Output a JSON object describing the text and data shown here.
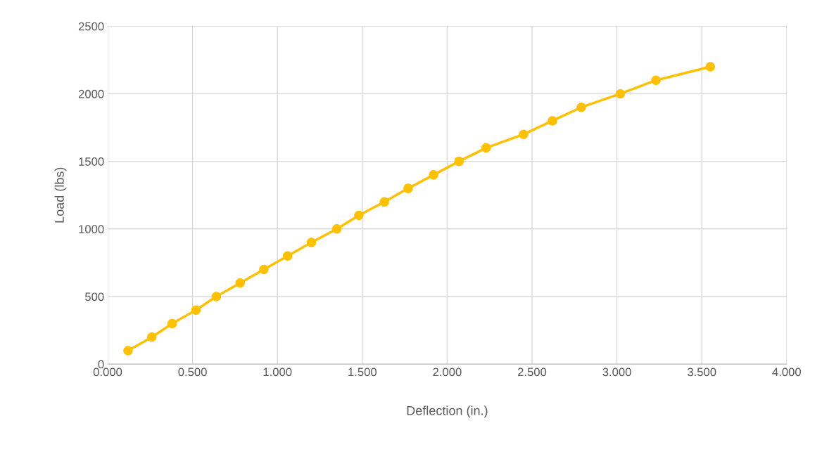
{
  "chart_data": {
    "type": "line",
    "xlabel": "Deflection (in.)",
    "ylabel": "Load (lbs)",
    "series": [
      {
        "color": "#ffc000",
        "x": [
          0.12,
          0.26,
          0.38,
          0.52,
          0.64,
          0.78,
          0.92,
          1.06,
          1.2,
          1.35,
          1.48,
          1.63,
          1.77,
          1.92,
          2.07,
          2.23,
          2.45,
          2.62,
          2.79,
          3.02,
          3.23,
          3.55
        ],
        "values": [
          100,
          200,
          300,
          400,
          500,
          600,
          700,
          800,
          900,
          1000,
          1100,
          1200,
          1300,
          1400,
          1500,
          1600,
          1700,
          1800,
          1900,
          2000,
          2100,
          2200
        ]
      }
    ],
    "marker": "circle",
    "line_style": "solid",
    "grid": true,
    "xlim": [
      0,
      4
    ],
    "xticks": [
      {
        "value": 0,
        "label": "0.000"
      },
      {
        "value": 0.5,
        "label": "0.500"
      },
      {
        "value": 1,
        "label": "1.000"
      },
      {
        "value": 1.5,
        "label": "1.500"
      },
      {
        "value": 2,
        "label": "2.000"
      },
      {
        "value": 2.5,
        "label": "2.500"
      },
      {
        "value": 3,
        "label": "3.000"
      },
      {
        "value": 3.5,
        "label": "3.500"
      },
      {
        "value": 4,
        "label": "4.000"
      }
    ],
    "ylim": [
      0,
      2500
    ],
    "yticks": [
      0,
      500,
      1000,
      1500,
      2000,
      2500
    ]
  }
}
